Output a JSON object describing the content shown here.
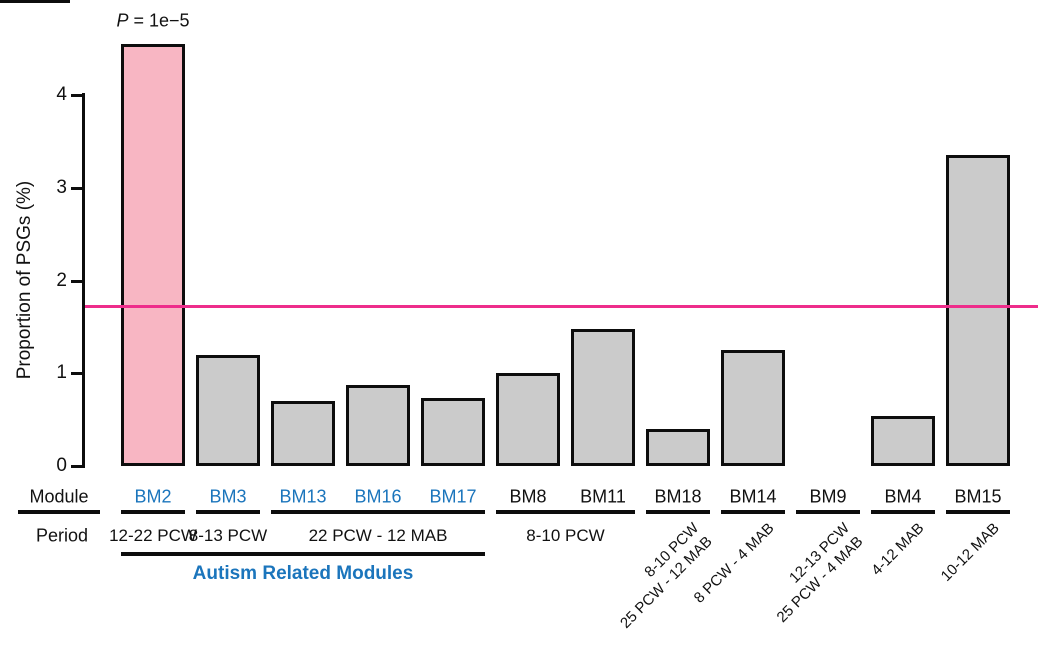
{
  "chart_data": {
    "type": "bar",
    "title": "",
    "xlabel": "",
    "ylabel": "Proportion of PSGs (%)",
    "ylim": [
      0,
      4.6
    ],
    "yticks": [
      "0",
      "1",
      "2",
      "3",
      "4"
    ],
    "grid": "off",
    "legend": "none",
    "annotation": {
      "italic": "P",
      "text": " = 1e−5",
      "target_module": "BM2"
    },
    "threshold_line": {
      "value": 1.73
    },
    "row_headers": {
      "module": "Module",
      "period": "Period"
    },
    "bars": [
      {
        "module": "BM2",
        "value": 4.55,
        "highlight": true,
        "blue": true
      },
      {
        "module": "BM3",
        "value": 1.2,
        "highlight": false,
        "blue": true
      },
      {
        "module": "BM13",
        "value": 0.7,
        "highlight": false,
        "blue": true
      },
      {
        "module": "BM16",
        "value": 0.87,
        "highlight": false,
        "blue": true
      },
      {
        "module": "BM17",
        "value": 0.73,
        "highlight": false,
        "blue": true
      },
      {
        "module": "BM8",
        "value": 1.0,
        "highlight": false,
        "blue": false
      },
      {
        "module": "BM11",
        "value": 1.48,
        "highlight": false,
        "blue": false
      },
      {
        "module": "BM18",
        "value": 0.4,
        "highlight": false,
        "blue": false
      },
      {
        "module": "BM14",
        "value": 1.25,
        "highlight": false,
        "blue": false
      },
      {
        "module": "BM9",
        "value": 0.0,
        "highlight": false,
        "blue": false
      },
      {
        "module": "BM4",
        "value": 0.54,
        "highlight": false,
        "blue": false
      },
      {
        "module": "BM15",
        "value": 3.35,
        "highlight": false,
        "blue": false
      }
    ],
    "module_underline_groups": [
      [
        0,
        0
      ],
      [
        1,
        1
      ],
      [
        2,
        4
      ],
      [
        5,
        6
      ],
      [
        7,
        7
      ],
      [
        8,
        8
      ],
      [
        9,
        9
      ],
      [
        10,
        10
      ],
      [
        11,
        11
      ]
    ],
    "period_groups": [
      {
        "from": 0,
        "to": 0,
        "text": "12-22 PCW"
      },
      {
        "from": 1,
        "to": 1,
        "text": "8-13 PCW"
      },
      {
        "from": 2,
        "to": 4,
        "text": "22 PCW - 12 MAB"
      },
      {
        "from": 5,
        "to": 6,
        "text": "8-10 PCW"
      }
    ],
    "rotated_periods": [
      {
        "bar": 7,
        "lines": [
          "8-10 PCW",
          "25 PCW - 12 MAB"
        ]
      },
      {
        "bar": 8,
        "lines": [
          "8 PCW - 4 MAB"
        ]
      },
      {
        "bar": 9,
        "lines": [
          "12-13 PCW",
          "25 PCW - 4 MAB"
        ]
      },
      {
        "bar": 10,
        "lines": [
          "4-12 MAB"
        ]
      },
      {
        "bar": 11,
        "lines": [
          "10-12 MAB"
        ]
      }
    ],
    "bracket": {
      "from": 0,
      "to": 4,
      "label": "Autism Related Modules"
    }
  },
  "colors": {
    "highlight_fill": "#F8B6C3",
    "bar_fill": "#CBCBCB",
    "border": "#0D0D0D",
    "blue": "#1B75BC",
    "threshold": "#EE2D8B"
  }
}
